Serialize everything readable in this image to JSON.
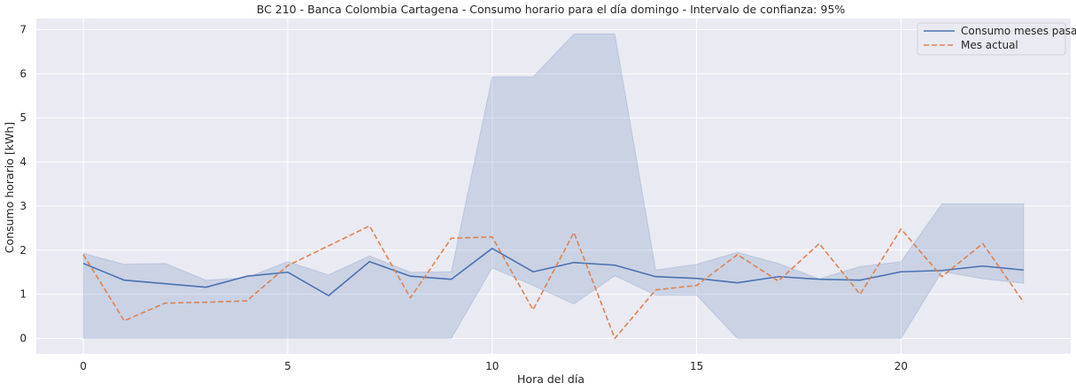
{
  "chart_data": {
    "type": "line",
    "title": "BC 210 - Banca Colombia Cartagena - Consumo horario para el día domingo - Intervalo de confianza: 95%",
    "xlabel": "Hora del día",
    "ylabel": "Consumo horario [kWh]",
    "xlim": [
      -1.15,
      24.15
    ],
    "ylim": [
      -0.35,
      7.25
    ],
    "xticks": [
      0,
      5,
      10,
      15,
      20
    ],
    "yticks": [
      0,
      1,
      2,
      3,
      4,
      5,
      6,
      7
    ],
    "grid": true,
    "legend_position": "top-right",
    "x": [
      0,
      1,
      2,
      3,
      4,
      5,
      6,
      7,
      8,
      9,
      10,
      11,
      12,
      13,
      14,
      15,
      16,
      17,
      18,
      19,
      20,
      21,
      22,
      23
    ],
    "series": [
      {
        "name": "Consumo meses pasados",
        "color": "#4c72b0",
        "style": "solid",
        "values": [
          1.7,
          1.32,
          1.24,
          1.16,
          1.41,
          1.5,
          0.97,
          1.74,
          1.41,
          1.34,
          2.04,
          1.51,
          1.72,
          1.66,
          1.4,
          1.36,
          1.26,
          1.4,
          1.34,
          1.32,
          1.51,
          1.54,
          1.64,
          1.55
        ],
        "ci_lower": [
          0.0,
          0.0,
          0.0,
          0.0,
          0.0,
          0.0,
          0.0,
          0.0,
          0.0,
          0.0,
          1.6,
          1.2,
          0.78,
          1.42,
          0.98,
          0.98,
          0.0,
          0.0,
          0.0,
          0.0,
          0.0,
          1.52,
          1.35,
          1.25
        ],
        "ci_upper": [
          1.93,
          1.68,
          1.7,
          1.32,
          1.38,
          1.74,
          1.44,
          1.87,
          1.5,
          1.51,
          5.93,
          5.93,
          6.9,
          6.9,
          1.55,
          1.68,
          1.95,
          1.7,
          1.35,
          1.63,
          1.74,
          3.05,
          3.05,
          3.05
        ]
      },
      {
        "name": "Mes actual",
        "color": "#dd8452",
        "style": "dashed",
        "values": [
          1.9,
          0.4,
          0.8,
          0.82,
          0.85,
          1.65,
          2.1,
          2.55,
          0.92,
          2.27,
          2.3,
          0.65,
          2.4,
          0.0,
          1.1,
          1.2,
          1.9,
          1.3,
          2.15,
          1.0,
          2.48,
          1.4,
          2.15,
          0.82
        ]
      }
    ],
    "ci_color": "#4c72b0"
  }
}
